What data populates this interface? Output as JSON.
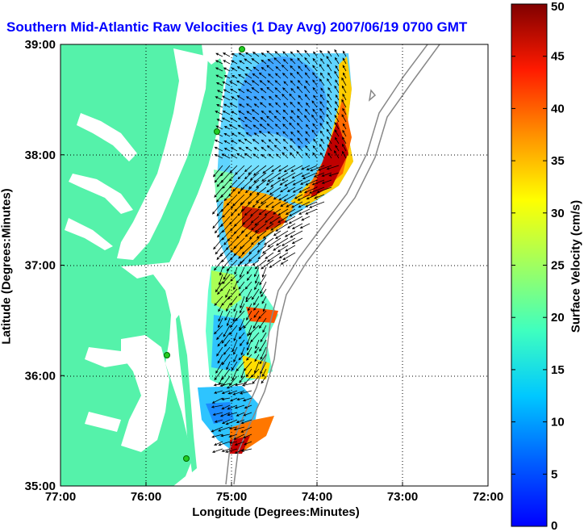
{
  "title": "Southern Mid-Atlantic Raw Velocities (1 Day Avg) 2007/06/19 0700 GMT",
  "axes": {
    "xlabel": "Longitude (Degrees:Minutes)",
    "ylabel": "Latitude (Degrees:Minutes)",
    "x_ticks": [
      "77:00",
      "76:00",
      "75:00",
      "74:00",
      "73:00",
      "72:00"
    ],
    "y_ticks": [
      "39:00",
      "38:00",
      "37:00",
      "36:00",
      "35:00"
    ],
    "xlim": [
      -77,
      -72
    ],
    "ylim": [
      35,
      39
    ],
    "grid": "dotted"
  },
  "colorbar": {
    "label": "Surface Velocity (cm/s)",
    "ticks": [
      "0",
      "5",
      "10",
      "15",
      "20",
      "25",
      "30",
      "35",
      "40",
      "45",
      "50"
    ],
    "range": [
      0,
      50
    ],
    "colormap": "jet"
  },
  "colors": {
    "land": "#55f2aa",
    "water": "#ffffff",
    "title": "#0000ff",
    "station": "#22cc22",
    "isobath": "#888888"
  }
}
